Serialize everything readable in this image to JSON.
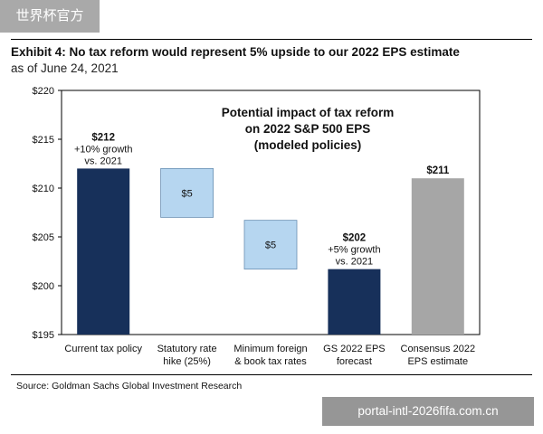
{
  "watermark_top": "世界杯官方",
  "watermark_bottom": "portal-intl-2026fifa.com.cn",
  "header": {
    "title": "Exhibit 4: No tax reform would represent 5% upside to our 2022 EPS estimate",
    "subtitle": "as of June 24, 2021"
  },
  "source": "Source: Goldman Sachs Global Investment Research",
  "colors": {
    "dark_navy": "#17305a",
    "light_blue": "#b6d6f0",
    "gray": "#a6a6a6"
  },
  "chart_data": {
    "type": "bar",
    "subtype": "waterfall",
    "title_lines": [
      "Potential impact of tax reform",
      "on 2022 S&P 500 EPS",
      "(modeled policies)"
    ],
    "categories": [
      [
        "Current tax policy"
      ],
      [
        "Statutory rate",
        "hike (25%)"
      ],
      [
        "Minimum foreign",
        "& book tax rates"
      ],
      [
        "GS 2022 EPS",
        "forecast"
      ],
      [
        "Consensus 2022",
        "EPS estimate"
      ]
    ],
    "bars": [
      {
        "start": 195,
        "end": 212,
        "style": "dark_navy",
        "labels": [
          "$212",
          "+10% growth",
          "vs. 2021"
        ],
        "label_bold": [
          true,
          false,
          false
        ],
        "label_pos": "above"
      },
      {
        "start": 207,
        "end": 212,
        "style": "light_blue",
        "labels": [
          "$5"
        ],
        "label_bold": [
          false
        ],
        "label_pos": "inside"
      },
      {
        "start": 201.7,
        "end": 206.7,
        "style": "light_blue",
        "labels": [
          "$5"
        ],
        "label_bold": [
          false
        ],
        "label_pos": "inside"
      },
      {
        "start": 195,
        "end": 201.7,
        "style": "dark_navy",
        "labels": [
          "$202",
          "+5% growth",
          "vs. 2021"
        ],
        "label_bold": [
          true,
          false,
          false
        ],
        "label_pos": "above"
      },
      {
        "start": 195,
        "end": 211,
        "style": "gray",
        "labels": [
          "$211"
        ],
        "label_bold": [
          true
        ],
        "label_pos": "above"
      }
    ],
    "yticks": [
      "$195",
      "$200",
      "$205",
      "$210",
      "$215",
      "$220"
    ],
    "ytick_values": [
      195,
      200,
      205,
      210,
      215,
      220
    ],
    "ylim": [
      195,
      220
    ],
    "grid": false,
    "legend": "none"
  }
}
